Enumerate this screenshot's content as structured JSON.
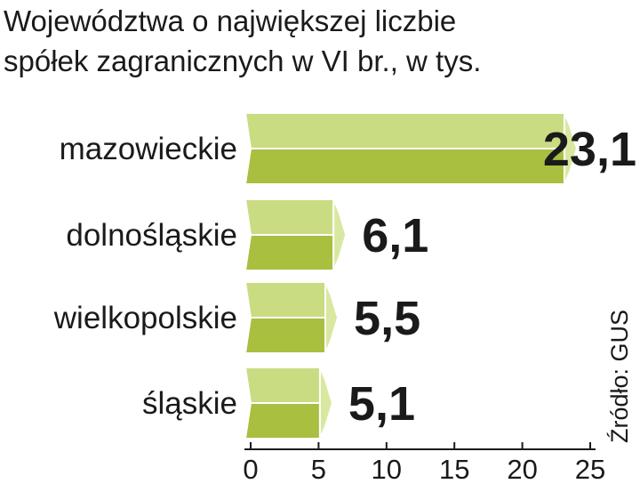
{
  "chart_data": {
    "type": "bar",
    "orientation": "horizontal",
    "title": "Województwa o największej liczbie spółek zagranicznych w VI br., w tys.",
    "title_lines": [
      "Województwa o największej liczbie",
      "spółek zagranicznych w VI br., w tys."
    ],
    "categories": [
      "mazowieckie",
      "dolnośląskie",
      "wielkopolskie",
      "śląskie"
    ],
    "values": [
      23.1,
      6.1,
      5.5,
      5.1
    ],
    "value_labels": [
      "23,1",
      "6,1",
      "5,5",
      "5,1"
    ],
    "x_ticks": [
      0,
      5,
      10,
      15,
      20,
      25
    ],
    "xlim": [
      0,
      25
    ],
    "grid": false,
    "source": "Źródło: GUS",
    "colors": {
      "bar_top": "#c9dc82",
      "bar_bottom": "#a8bf3f",
      "bar_face": "#d9e8a0",
      "bar_stroke": "#ffffff",
      "text": "#1a1a1a"
    }
  }
}
